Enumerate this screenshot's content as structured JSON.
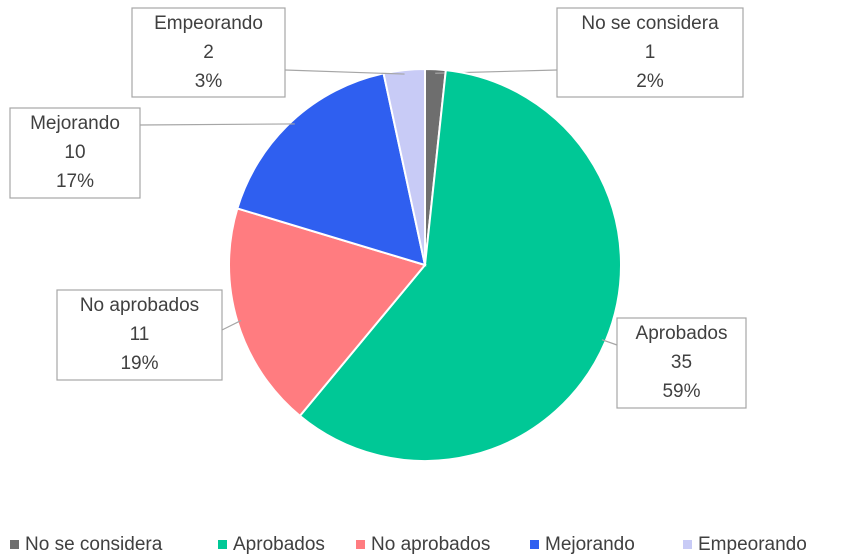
{
  "chart_data": {
    "type": "pie",
    "categories": [
      "No se considera",
      "Aprobados",
      "No aprobados",
      "Mejorando",
      "Empeorando"
    ],
    "values": [
      1,
      35,
      11,
      10,
      2
    ],
    "percent_labels": [
      "2%",
      "59%",
      "19%",
      "17%",
      "3%"
    ],
    "colors": [
      "#6e6e6e",
      "#00c896",
      "#ff7c80",
      "#2f5ff0",
      "#c8cbf6"
    ],
    "legend": "bottom"
  }
}
